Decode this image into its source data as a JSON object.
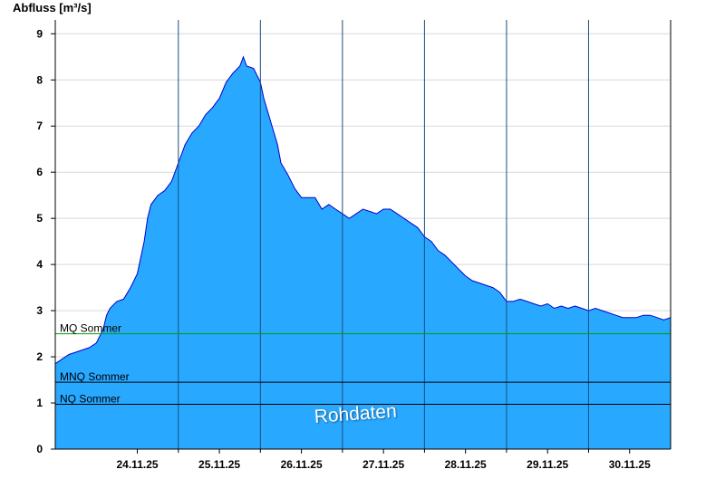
{
  "chart_data": {
    "type": "area",
    "ylabel": "Abfluss [m³/s]",
    "ylim": [
      0,
      9.3
    ],
    "yticks": [
      0,
      1,
      2,
      3,
      4,
      5,
      6,
      7,
      8,
      9
    ],
    "xlim": [
      "23.11.25 12:00",
      "30.11.25 24:00"
    ],
    "xticks": [
      {
        "label": "24.11.25",
        "date": "24.11.25 12:00"
      },
      {
        "label": "25.11.25",
        "date": "25.11.25 12:00"
      },
      {
        "label": "26.11.25",
        "date": "26.11.25 12:00"
      },
      {
        "label": "27.11.25",
        "date": "27.11.25 12:00"
      },
      {
        "label": "28.11.25",
        "date": "28.11.25 12:00"
      },
      {
        "label": "29.11.25",
        "date": "29.11.25 12:00"
      },
      {
        "label": "30.11.25",
        "date": "30.11.25 12:00"
      }
    ],
    "day_separators": [
      "25.11.25 00:00",
      "26.11.25 00:00",
      "27.11.25 00:00",
      "28.11.25 00:00",
      "29.11.25 00:00",
      "30.11.25 00:00"
    ],
    "grid": true,
    "series": [
      {
        "values": [
          [
            "23.11.25 12:00",
            1.85
          ],
          [
            "23.11.25 14:00",
            1.95
          ],
          [
            "23.11.25 16:00",
            2.05
          ],
          [
            "23.11.25 18:00",
            2.1
          ],
          [
            "23.11.25 20:00",
            2.15
          ],
          [
            "23.11.25 22:00",
            2.2
          ],
          [
            "24.11.25 00:00",
            2.3
          ],
          [
            "24.11.25 02:00",
            2.6
          ],
          [
            "24.11.25 03:00",
            2.9
          ],
          [
            "24.11.25 04:00",
            3.05
          ],
          [
            "24.11.25 06:00",
            3.2
          ],
          [
            "24.11.25 08:00",
            3.25
          ],
          [
            "24.11.25 10:00",
            3.5
          ],
          [
            "24.11.25 12:00",
            3.8
          ],
          [
            "24.11.25 14:00",
            4.5
          ],
          [
            "24.11.25 15:00",
            5.0
          ],
          [
            "24.11.25 16:00",
            5.3
          ],
          [
            "24.11.25 18:00",
            5.5
          ],
          [
            "24.11.25 20:00",
            5.6
          ],
          [
            "24.11.25 22:00",
            5.8
          ],
          [
            "25.11.25 00:00",
            6.2
          ],
          [
            "25.11.25 02:00",
            6.6
          ],
          [
            "25.11.25 04:00",
            6.85
          ],
          [
            "25.11.25 06:00",
            7.0
          ],
          [
            "25.11.25 08:00",
            7.25
          ],
          [
            "25.11.25 10:00",
            7.4
          ],
          [
            "25.11.25 12:00",
            7.6
          ],
          [
            "25.11.25 14:00",
            7.95
          ],
          [
            "25.11.25 16:00",
            8.15
          ],
          [
            "25.11.25 18:00",
            8.3
          ],
          [
            "25.11.25 19:00",
            8.5
          ],
          [
            "25.11.25 20:00",
            8.3
          ],
          [
            "25.11.25 22:00",
            8.25
          ],
          [
            "26.11.25 00:00",
            7.95
          ],
          [
            "26.11.25 01:00",
            7.6
          ],
          [
            "26.11.25 03:00",
            7.1
          ],
          [
            "26.11.25 05:00",
            6.6
          ],
          [
            "26.11.25 06:00",
            6.2
          ],
          [
            "26.11.25 08:00",
            5.95
          ],
          [
            "26.11.25 10:00",
            5.65
          ],
          [
            "26.11.25 12:00",
            5.45
          ],
          [
            "26.11.25 14:00",
            5.45
          ],
          [
            "26.11.25 16:00",
            5.45
          ],
          [
            "26.11.25 18:00",
            5.2
          ],
          [
            "26.11.25 20:00",
            5.3
          ],
          [
            "26.11.25 22:00",
            5.2
          ],
          [
            "27.11.25 00:00",
            5.1
          ],
          [
            "27.11.25 02:00",
            5.0
          ],
          [
            "27.11.25 04:00",
            5.1
          ],
          [
            "27.11.25 06:00",
            5.2
          ],
          [
            "27.11.25 08:00",
            5.15
          ],
          [
            "27.11.25 10:00",
            5.1
          ],
          [
            "27.11.25 12:00",
            5.2
          ],
          [
            "27.11.25 14:00",
            5.2
          ],
          [
            "27.11.25 16:00",
            5.1
          ],
          [
            "27.11.25 18:00",
            5.0
          ],
          [
            "27.11.25 20:00",
            4.9
          ],
          [
            "27.11.25 22:00",
            4.8
          ],
          [
            "28.11.25 00:00",
            4.6
          ],
          [
            "28.11.25 02:00",
            4.5
          ],
          [
            "28.11.25 04:00",
            4.3
          ],
          [
            "28.11.25 06:00",
            4.2
          ],
          [
            "28.11.25 08:00",
            4.05
          ],
          [
            "28.11.25 10:00",
            3.9
          ],
          [
            "28.11.25 12:00",
            3.75
          ],
          [
            "28.11.25 14:00",
            3.65
          ],
          [
            "28.11.25 16:00",
            3.6
          ],
          [
            "28.11.25 18:00",
            3.55
          ],
          [
            "28.11.25 20:00",
            3.5
          ],
          [
            "28.11.25 22:00",
            3.4
          ],
          [
            "29.11.25 00:00",
            3.2
          ],
          [
            "29.11.25 02:00",
            3.2
          ],
          [
            "29.11.25 04:00",
            3.25
          ],
          [
            "29.11.25 06:00",
            3.2
          ],
          [
            "29.11.25 08:00",
            3.15
          ],
          [
            "29.11.25 10:00",
            3.1
          ],
          [
            "29.11.25 12:00",
            3.15
          ],
          [
            "29.11.25 14:00",
            3.05
          ],
          [
            "29.11.25 16:00",
            3.1
          ],
          [
            "29.11.25 18:00",
            3.05
          ],
          [
            "29.11.25 20:00",
            3.1
          ],
          [
            "29.11.25 22:00",
            3.05
          ],
          [
            "30.11.25 00:00",
            3.0
          ],
          [
            "30.11.25 02:00",
            3.05
          ],
          [
            "30.11.25 04:00",
            3.0
          ],
          [
            "30.11.25 06:00",
            2.95
          ],
          [
            "30.11.25 08:00",
            2.9
          ],
          [
            "30.11.25 10:00",
            2.85
          ],
          [
            "30.11.25 12:00",
            2.85
          ],
          [
            "30.11.25 14:00",
            2.85
          ],
          [
            "30.11.25 16:00",
            2.9
          ],
          [
            "30.11.25 18:00",
            2.9
          ],
          [
            "30.11.25 20:00",
            2.85
          ],
          [
            "30.11.25 22:00",
            2.8
          ],
          [
            "30.11.25 24:00",
            2.85
          ]
        ]
      }
    ],
    "reference_lines": [
      {
        "label": "MQ Sommer",
        "value": 2.5,
        "color": "#00a000"
      },
      {
        "label": "MNQ Sommer",
        "value": 1.45,
        "color": "#000000"
      },
      {
        "label": "NQ Sommer",
        "value": 0.97,
        "color": "#000000"
      }
    ],
    "watermark": "Rohdaten",
    "colors": {
      "fill": "#29a8ff",
      "line": "#0000cc",
      "grid": "#d8d8d8",
      "separator": "#1a4f80"
    }
  }
}
